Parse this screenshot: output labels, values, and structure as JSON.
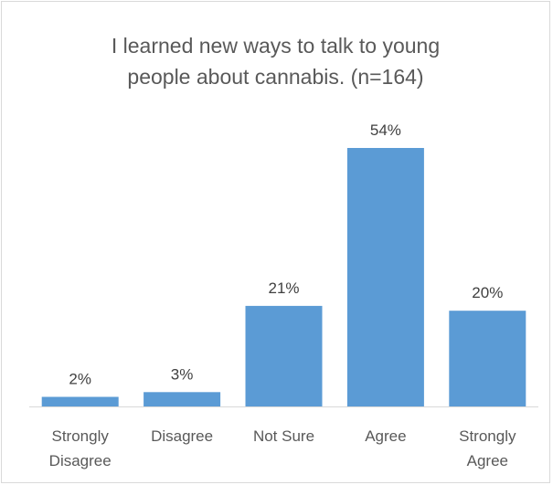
{
  "chart_data": {
    "type": "bar",
    "title_lines": [
      "I learned new ways to talk to young",
      "people about cannabis. (n=164)"
    ],
    "categories": [
      [
        "Strongly",
        "Disagree"
      ],
      [
        "Disagree"
      ],
      [
        "Not Sure"
      ],
      [
        "Agree"
      ],
      [
        "Strongly",
        "Agree"
      ]
    ],
    "values": [
      2,
      3,
      21,
      54,
      20
    ],
    "data_labels": [
      "2%",
      "3%",
      "21%",
      "54%",
      "20%"
    ],
    "ylim": [
      0,
      54
    ],
    "grid": false,
    "bar_color": "#5b9bd5"
  }
}
